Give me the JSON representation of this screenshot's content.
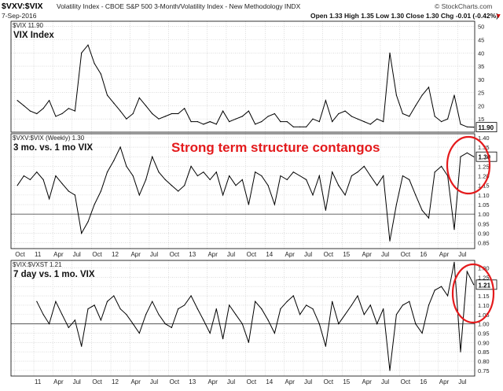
{
  "header": {
    "symbol": "$VXV:$VIX",
    "description": "Volatility Index - CBOE S&P 500 3-Month/Volatility Index - New Methodology INDX",
    "date": "7-Sep-2016",
    "ohlc": "Open 1.33  High 1.35  Low 1.30  Close 1.30  Chg -0.01 (-0.42%)",
    "ohlc_arrow": "▼",
    "watermark": "© StockCharts.com"
  },
  "annotation": {
    "text": "Strong term structure contangos",
    "color": "#e41a1c"
  },
  "colors": {
    "line": "#000000",
    "grid": "#c8c8c8",
    "refline": "#555555",
    "circle": "#e41a1c",
    "frame": "#000000"
  },
  "chart_data": [
    {
      "type": "line",
      "legend": "$VIX 11.90",
      "panel_label": "VIX Index",
      "y_ticks": [
        15,
        20,
        25,
        30,
        35,
        40,
        45,
        50
      ],
      "ylim": [
        10,
        52
      ],
      "last_value_label": "11.90",
      "x": [
        "2010-10",
        "2010-11",
        "2010-12",
        "2011-01",
        "2011-02",
        "2011-03",
        "2011-04",
        "2011-05",
        "2011-06",
        "2011-07",
        "2011-08",
        "2011-09",
        "2011-10",
        "2011-11",
        "2011-12",
        "2012-01",
        "2012-02",
        "2012-03",
        "2012-04",
        "2012-05",
        "2012-06",
        "2012-07",
        "2012-08",
        "2012-09",
        "2012-10",
        "2012-11",
        "2012-12",
        "2013-01",
        "2013-02",
        "2013-03",
        "2013-04",
        "2013-05",
        "2013-06",
        "2013-07",
        "2013-08",
        "2013-09",
        "2013-10",
        "2013-11",
        "2013-12",
        "2014-01",
        "2014-02",
        "2014-03",
        "2014-04",
        "2014-05",
        "2014-06",
        "2014-07",
        "2014-08",
        "2014-09",
        "2014-10",
        "2014-11",
        "2014-12",
        "2015-01",
        "2015-02",
        "2015-03",
        "2015-04",
        "2015-05",
        "2015-06",
        "2015-07",
        "2015-08",
        "2015-09",
        "2015-10",
        "2015-11",
        "2015-12",
        "2016-01",
        "2016-02",
        "2016-03",
        "2016-04",
        "2016-05",
        "2016-06",
        "2016-07",
        "2016-08",
        "2016-09"
      ],
      "values": [
        22,
        20,
        18,
        17,
        19,
        22,
        16,
        17,
        19,
        18,
        40,
        43,
        36,
        32,
        24,
        21,
        18,
        15,
        17,
        23,
        20,
        17,
        15,
        16,
        17,
        17,
        19,
        14,
        14,
        13,
        14,
        13,
        18,
        14,
        15,
        16,
        18,
        13,
        14,
        16,
        17,
        14,
        14,
        12,
        12,
        12,
        15,
        14,
        22,
        14,
        17,
        18,
        16,
        15,
        14,
        13,
        15,
        14,
        40,
        24,
        17,
        16,
        20,
        24,
        27,
        16,
        14,
        15,
        24,
        13,
        12,
        11.9
      ]
    },
    {
      "type": "line",
      "legend": "$VXV:$VIX (Weekly) 1.30",
      "panel_label": "3 mo. vs. 1 mo VIX",
      "y_ticks": [
        0.85,
        0.9,
        0.95,
        1.0,
        1.05,
        1.1,
        1.15,
        1.2,
        1.25,
        1.3,
        1.35,
        1.4
      ],
      "ylim": [
        0.82,
        1.42
      ],
      "reference_line": 1.0,
      "last_value_label": "1.30",
      "x_tick_labels": [
        "Oct",
        "11",
        "Apr",
        "Jul",
        "Oct",
        "12",
        "Apr",
        "Jul",
        "Oct",
        "13",
        "Apr",
        "Jul",
        "Oct",
        "14",
        "Apr",
        "Jul",
        "Oct",
        "15",
        "Apr",
        "Jul",
        "Oct",
        "16",
        "Apr",
        "Jul"
      ],
      "x": [
        "2010-10",
        "2010-11",
        "2010-12",
        "2011-01",
        "2011-02",
        "2011-03",
        "2011-04",
        "2011-05",
        "2011-06",
        "2011-07",
        "2011-08",
        "2011-09",
        "2011-10",
        "2011-11",
        "2011-12",
        "2012-01",
        "2012-02",
        "2012-03",
        "2012-04",
        "2012-05",
        "2012-06",
        "2012-07",
        "2012-08",
        "2012-09",
        "2012-10",
        "2012-11",
        "2012-12",
        "2013-01",
        "2013-02",
        "2013-03",
        "2013-04",
        "2013-05",
        "2013-06",
        "2013-07",
        "2013-08",
        "2013-09",
        "2013-10",
        "2013-11",
        "2013-12",
        "2014-01",
        "2014-02",
        "2014-03",
        "2014-04",
        "2014-05",
        "2014-06",
        "2014-07",
        "2014-08",
        "2014-09",
        "2014-10",
        "2014-11",
        "2014-12",
        "2015-01",
        "2015-02",
        "2015-03",
        "2015-04",
        "2015-05",
        "2015-06",
        "2015-07",
        "2015-08",
        "2015-09",
        "2015-10",
        "2015-11",
        "2015-12",
        "2016-01",
        "2016-02",
        "2016-03",
        "2016-04",
        "2016-05",
        "2016-06",
        "2016-07",
        "2016-08",
        "2016-09"
      ],
      "values": [
        1.15,
        1.2,
        1.18,
        1.22,
        1.18,
        1.08,
        1.2,
        1.16,
        1.12,
        1.1,
        0.9,
        0.96,
        1.05,
        1.12,
        1.22,
        1.28,
        1.35,
        1.25,
        1.2,
        1.1,
        1.18,
        1.3,
        1.22,
        1.18,
        1.15,
        1.12,
        1.15,
        1.25,
        1.2,
        1.22,
        1.18,
        1.22,
        1.1,
        1.2,
        1.15,
        1.18,
        1.05,
        1.22,
        1.2,
        1.15,
        1.05,
        1.2,
        1.18,
        1.22,
        1.2,
        1.18,
        1.1,
        1.2,
        1.02,
        1.22,
        1.15,
        1.1,
        1.2,
        1.22,
        1.25,
        1.2,
        1.15,
        1.2,
        0.86,
        1.05,
        1.2,
        1.18,
        1.1,
        1.02,
        0.98,
        1.22,
        1.25,
        1.2,
        0.92,
        1.3,
        1.32,
        1.3
      ]
    },
    {
      "type": "line",
      "legend": "$VIX:$VXST 1.21",
      "panel_label": "7 day vs. 1 mo. VIX",
      "y_ticks": [
        0.75,
        0.8,
        0.85,
        0.9,
        0.95,
        1.0,
        1.05,
        1.1,
        1.15,
        1.2,
        1.25,
        1.3
      ],
      "ylim": [
        0.72,
        1.34
      ],
      "reference_line": 1.0,
      "last_value_label": "1.21",
      "x_tick_labels": [
        "11",
        "Apr",
        "Jul",
        "Oct",
        "12",
        "Apr",
        "Jul",
        "Oct",
        "13",
        "Apr",
        "Jul",
        "Oct",
        "14",
        "Apr",
        "Jul",
        "Oct",
        "15",
        "Apr",
        "Jul",
        "Oct",
        "16",
        "Apr",
        "Jul"
      ],
      "x": [
        "2011-01",
        "2011-02",
        "2011-03",
        "2011-04",
        "2011-05",
        "2011-06",
        "2011-07",
        "2011-08",
        "2011-09",
        "2011-10",
        "2011-11",
        "2011-12",
        "2012-01",
        "2012-02",
        "2012-03",
        "2012-04",
        "2012-05",
        "2012-06",
        "2012-07",
        "2012-08",
        "2012-09",
        "2012-10",
        "2012-11",
        "2012-12",
        "2013-01",
        "2013-02",
        "2013-03",
        "2013-04",
        "2013-05",
        "2013-06",
        "2013-07",
        "2013-08",
        "2013-09",
        "2013-10",
        "2013-11",
        "2013-12",
        "2014-01",
        "2014-02",
        "2014-03",
        "2014-04",
        "2014-05",
        "2014-06",
        "2014-07",
        "2014-08",
        "2014-09",
        "2014-10",
        "2014-11",
        "2014-12",
        "2015-01",
        "2015-02",
        "2015-03",
        "2015-04",
        "2015-05",
        "2015-06",
        "2015-07",
        "2015-08",
        "2015-09",
        "2015-10",
        "2015-11",
        "2015-12",
        "2016-01",
        "2016-02",
        "2016-03",
        "2016-04",
        "2016-05",
        "2016-06",
        "2016-07",
        "2016-08",
        "2016-09"
      ],
      "values": [
        1.12,
        1.05,
        1.0,
        1.12,
        1.05,
        0.98,
        1.02,
        0.88,
        1.08,
        1.1,
        1.02,
        1.12,
        1.15,
        1.08,
        1.05,
        1.0,
        0.95,
        1.05,
        1.12,
        1.05,
        1.0,
        0.98,
        1.08,
        1.1,
        1.15,
        1.08,
        1.02,
        0.95,
        1.08,
        0.92,
        1.1,
        1.05,
        1.0,
        0.9,
        1.12,
        1.08,
        1.02,
        0.95,
        1.08,
        1.12,
        1.15,
        1.05,
        1.1,
        1.08,
        1.0,
        0.88,
        1.12,
        1.0,
        1.05,
        1.1,
        1.15,
        1.05,
        1.1,
        1.0,
        1.08,
        0.75,
        1.05,
        1.1,
        1.12,
        1.0,
        0.95,
        1.1,
        1.18,
        1.2,
        1.15,
        1.33,
        0.85,
        1.28,
        1.21
      ]
    }
  ],
  "panels": [
    {
      "x_range": [
        "2010-09-15",
        "2016-09-20"
      ]
    },
    {
      "x_range": [
        "2010-09-15",
        "2016-09-20"
      ]
    },
    {
      "x_range": [
        "2010-09-15",
        "2016-09-20"
      ]
    }
  ]
}
